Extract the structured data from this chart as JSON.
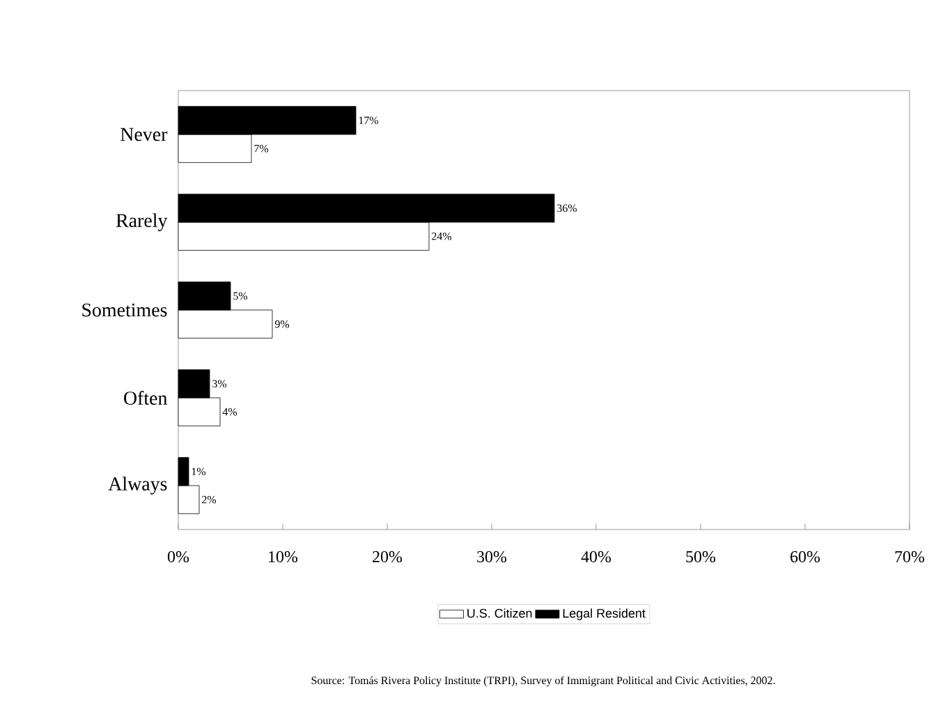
{
  "chart_data": {
    "type": "bar",
    "orientation": "horizontal",
    "categories": [
      "Never",
      "Rarely",
      "Sometimes",
      "Often",
      "Always"
    ],
    "series": [
      {
        "name": "U.S. Citizen",
        "color": "#ffffff",
        "values": [
          7,
          24,
          9,
          4,
          2
        ],
        "value_labels": [
          "7%",
          "24%",
          "9%",
          "4%",
          "2%"
        ]
      },
      {
        "name": "Legal Resident",
        "color": "#000000",
        "values": [
          17,
          36,
          5,
          3,
          1
        ],
        "value_labels": [
          "17%",
          "36%",
          "5%",
          "3%",
          "1%"
        ]
      }
    ],
    "xlim": [
      0,
      70
    ],
    "xticks": [
      {
        "value": 0,
        "label": "0%"
      },
      {
        "value": 10,
        "label": "10%"
      },
      {
        "value": 20,
        "label": "20%"
      },
      {
        "value": 30,
        "label": "30%"
      },
      {
        "value": 40,
        "label": "40%"
      },
      {
        "value": 50,
        "label": "50%"
      },
      {
        "value": 60,
        "label": "60%"
      },
      {
        "value": 70,
        "label": "70%"
      }
    ],
    "legend": "bottom",
    "grid": false,
    "annotations": [
      "Source: Tomás Rivera Policy Institute (TRPI), Survey of Immigrant Political and Civic Activities, 2002."
    ]
  }
}
